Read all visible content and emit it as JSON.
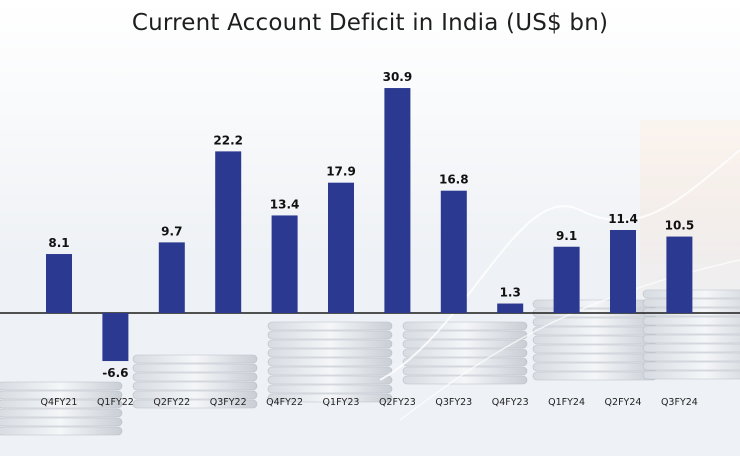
{
  "chart_data": {
    "type": "bar",
    "title": "Current Account Deficit in India (US$ bn)",
    "categories": [
      "Q4FY21",
      "Q1FY22",
      "Q2FY22",
      "Q3FY22",
      "Q4FY22",
      "Q1FY23",
      "Q2FY23",
      "Q3FY23",
      "Q4FY23",
      "Q1FY24",
      "Q2FY24",
      "Q3FY24"
    ],
    "values": [
      8.1,
      -6.6,
      9.7,
      22.2,
      13.4,
      17.9,
      30.9,
      16.8,
      1.3,
      9.1,
      11.4,
      10.5
    ],
    "data_labels": [
      "8.1",
      "-6.6",
      "9.7",
      "22.2",
      "13.4",
      "17.9",
      "30.9",
      "16.8",
      "1.3",
      "9.1",
      "11.4",
      "10.5"
    ],
    "xlabel": "",
    "ylabel": "",
    "grid": false,
    "legend": "none",
    "bar_color": "#2b3990",
    "axis_line_color": "#1a1a1a"
  }
}
